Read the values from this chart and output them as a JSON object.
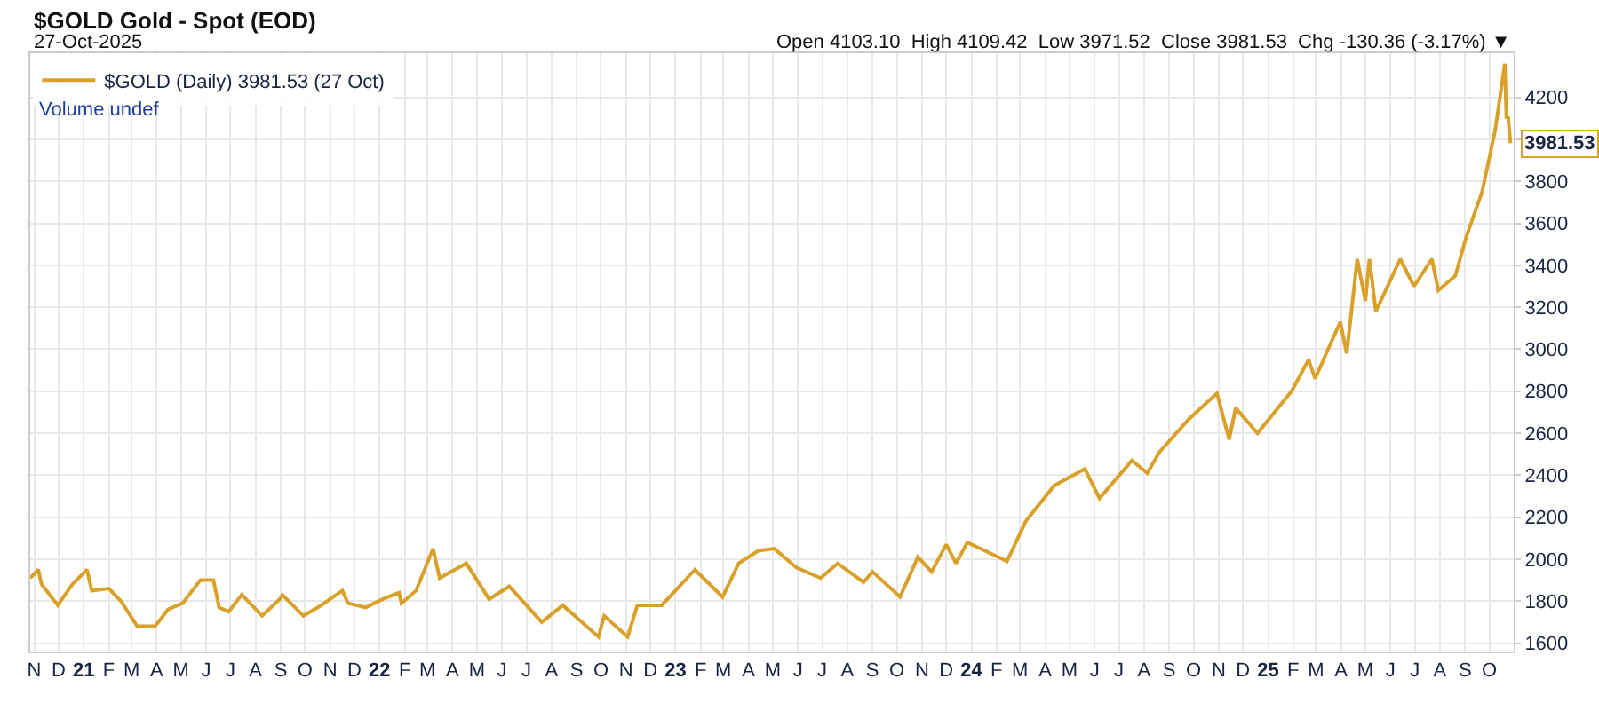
{
  "chart_data": {
    "type": "line",
    "title": "$GOLD Gold - Spot (EOD)",
    "subtitle": "27-Oct-2025",
    "annotations": [
      "Open 4103.10  High 4109.42  Low 3971.52  Close 3981.53  Chg -130.36 (-3.17%) ▼",
      "Volume undef"
    ],
    "x": [
      "2020-10-27",
      "2020-11-06",
      "2020-11-10",
      "2020-11-30",
      "2020-12-18",
      "2021-01-05",
      "2021-01-11",
      "2021-02-01",
      "2021-02-16",
      "2021-03-08",
      "2021-03-30",
      "2021-04-15",
      "2021-05-03",
      "2021-05-25",
      "2021-06-10",
      "2021-06-17",
      "2021-06-29",
      "2021-07-15",
      "2021-08-09",
      "2021-08-31",
      "2021-09-03",
      "2021-09-29",
      "2021-10-21",
      "2021-11-16",
      "2021-11-23",
      "2021-12-15",
      "2022-01-05",
      "2022-01-25",
      "2022-01-28",
      "2022-02-15",
      "2022-03-08",
      "2022-03-16",
      "2022-04-18",
      "2022-05-16",
      "2022-06-10",
      "2022-07-20",
      "2022-08-15",
      "2022-09-28",
      "2022-10-05",
      "2022-11-03",
      "2022-11-15",
      "2022-12-15",
      "2023-01-25",
      "2023-02-28",
      "2023-03-20",
      "2023-04-13",
      "2023-05-03",
      "2023-05-30",
      "2023-06-29",
      "2023-07-20",
      "2023-08-21",
      "2023-09-01",
      "2023-10-05",
      "2023-10-27",
      "2023-11-13",
      "2023-12-01",
      "2023-12-13",
      "2023-12-27",
      "2024-02-14",
      "2024-03-08",
      "2024-04-12",
      "2024-05-20",
      "2024-06-07",
      "2024-07-17",
      "2024-08-05",
      "2024-08-20",
      "2024-09-26",
      "2024-10-30",
      "2024-11-14",
      "2024-11-22",
      "2024-12-19",
      "2025-01-30",
      "2025-02-20",
      "2025-02-28",
      "2025-03-31",
      "2025-04-08",
      "2025-04-21",
      "2025-05-01",
      "2025-05-06",
      "2025-05-14",
      "2025-06-13",
      "2025-06-30",
      "2025-07-22",
      "2025-07-30",
      "2025-08-20",
      "2025-09-02",
      "2025-09-22",
      "2025-10-08",
      "2025-10-20",
      "2025-10-22",
      "2025-10-24",
      "2025-10-27"
    ],
    "series": [
      {
        "name": "$GOLD (Daily) 3981.53 (27 Oct)",
        "color": "#d9a02a",
        "values": [
          1910,
          1950,
          1880,
          1780,
          1880,
          1950,
          1850,
          1860,
          1800,
          1680,
          1680,
          1760,
          1790,
          1900,
          1900,
          1770,
          1750,
          1830,
          1730,
          1810,
          1830,
          1730,
          1780,
          1850,
          1790,
          1770,
          1810,
          1840,
          1790,
          1850,
          2050,
          1910,
          1980,
          1810,
          1870,
          1700,
          1780,
          1630,
          1730,
          1630,
          1780,
          1780,
          1950,
          1820,
          1980,
          2040,
          2050,
          1960,
          1910,
          1980,
          1890,
          1940,
          1820,
          2010,
          1940,
          2070,
          1980,
          2080,
          1990,
          2180,
          2350,
          2430,
          2290,
          2470,
          2410,
          2510,
          2670,
          2790,
          2570,
          2720,
          2600,
          2800,
          2950,
          2860,
          3130,
          2980,
          3430,
          3230,
          3430,
          3180,
          3430,
          3300,
          3430,
          3280,
          3350,
          3530,
          3750,
          4040,
          4360,
          4100,
          4110,
          3981.53
        ],
        "value_labels": [
          null,
          null,
          null,
          null,
          null,
          null,
          null,
          null,
          null,
          null,
          null,
          null,
          null,
          null,
          null,
          null,
          null,
          null,
          null,
          null,
          null,
          null,
          null,
          null,
          null,
          null,
          null,
          null,
          null,
          null,
          null,
          null,
          null,
          null,
          null,
          null,
          null,
          null,
          null,
          null,
          null,
          null,
          null,
          null,
          null,
          null,
          null,
          null,
          null,
          null,
          null,
          null,
          null,
          null,
          null,
          null,
          null,
          null,
          null,
          null,
          null,
          null,
          null,
          null,
          null,
          null,
          null,
          null,
          null,
          null,
          null,
          null,
          null,
          null,
          null,
          null,
          null,
          null,
          null,
          null,
          null,
          null,
          null,
          null,
          null,
          null,
          null,
          null,
          null,
          null,
          null,
          "3981.53"
        ]
      }
    ],
    "xlim": [
      "2020-10-27",
      "2025-10-31"
    ],
    "ylim": [
      1560,
      4410
    ],
    "yticks": [
      1600,
      1800,
      2000,
      2200,
      2400,
      2600,
      2800,
      3000,
      3200,
      3400,
      3600,
      3800,
      {
        "value": 4000,
        "label": null
      },
      4200
    ],
    "xticks": [
      {
        "value": "2020-11-01",
        "label": "N"
      },
      {
        "value": "2020-12-01",
        "label": "D"
      },
      {
        "value": "2021-01-01",
        "label": "21"
      },
      {
        "value": "2021-02-01",
        "label": "F"
      },
      {
        "value": "2021-03-01",
        "label": "M"
      },
      {
        "value": "2021-04-01",
        "label": "A"
      },
      {
        "value": "2021-05-01",
        "label": "M"
      },
      {
        "value": "2021-06-01",
        "label": "J"
      },
      {
        "value": "2021-07-01",
        "label": "J"
      },
      {
        "value": "2021-08-01",
        "label": "A"
      },
      {
        "value": "2021-09-01",
        "label": "S"
      },
      {
        "value": "2021-10-01",
        "label": "O"
      },
      {
        "value": "2021-11-01",
        "label": "N"
      },
      {
        "value": "2021-12-01",
        "label": "D"
      },
      {
        "value": "2022-01-01",
        "label": "22"
      },
      {
        "value": "2022-02-01",
        "label": "F"
      },
      {
        "value": "2022-03-01",
        "label": "M"
      },
      {
        "value": "2022-04-01",
        "label": "A"
      },
      {
        "value": "2022-05-01",
        "label": "M"
      },
      {
        "value": "2022-06-01",
        "label": "J"
      },
      {
        "value": "2022-07-01",
        "label": "J"
      },
      {
        "value": "2022-08-01",
        "label": "A"
      },
      {
        "value": "2022-09-01",
        "label": "S"
      },
      {
        "value": "2022-10-01",
        "label": "O"
      },
      {
        "value": "2022-11-01",
        "label": "N"
      },
      {
        "value": "2022-12-01",
        "label": "D"
      },
      {
        "value": "2023-01-01",
        "label": "23"
      },
      {
        "value": "2023-02-01",
        "label": "F"
      },
      {
        "value": "2023-03-01",
        "label": "M"
      },
      {
        "value": "2023-04-01",
        "label": "A"
      },
      {
        "value": "2023-05-01",
        "label": "M"
      },
      {
        "value": "2023-06-01",
        "label": "J"
      },
      {
        "value": "2023-07-01",
        "label": "J"
      },
      {
        "value": "2023-08-01",
        "label": "A"
      },
      {
        "value": "2023-09-01",
        "label": "S"
      },
      {
        "value": "2023-10-01",
        "label": "O"
      },
      {
        "value": "2023-11-01",
        "label": "N"
      },
      {
        "value": "2023-12-01",
        "label": "D"
      },
      {
        "value": "2024-01-01",
        "label": "24"
      },
      {
        "value": "2024-02-01",
        "label": "F"
      },
      {
        "value": "2024-03-01",
        "label": "M"
      },
      {
        "value": "2024-04-01",
        "label": "A"
      },
      {
        "value": "2024-05-01",
        "label": "M"
      },
      {
        "value": "2024-06-01",
        "label": "J"
      },
      {
        "value": "2024-07-01",
        "label": "J"
      },
      {
        "value": "2024-08-01",
        "label": "A"
      },
      {
        "value": "2024-09-01",
        "label": "S"
      },
      {
        "value": "2024-10-01",
        "label": "O"
      },
      {
        "value": "2024-11-01",
        "label": "N"
      },
      {
        "value": "2024-12-01",
        "label": "D"
      },
      {
        "value": "2025-01-01",
        "label": "25"
      },
      {
        "value": "2025-02-01",
        "label": "F"
      },
      {
        "value": "2025-03-01",
        "label": "M"
      },
      {
        "value": "2025-04-01",
        "label": "A"
      },
      {
        "value": "2025-05-01",
        "label": "M"
      },
      {
        "value": "2025-06-01",
        "label": "J"
      },
      {
        "value": "2025-07-01",
        "label": "J"
      },
      {
        "value": "2025-08-01",
        "label": "A"
      },
      {
        "value": "2025-09-01",
        "label": "S"
      },
      {
        "value": "2025-10-01",
        "label": "O"
      }
    ],
    "grid": true,
    "legend": "top left",
    "marker": "none",
    "line_style": "solid"
  }
}
